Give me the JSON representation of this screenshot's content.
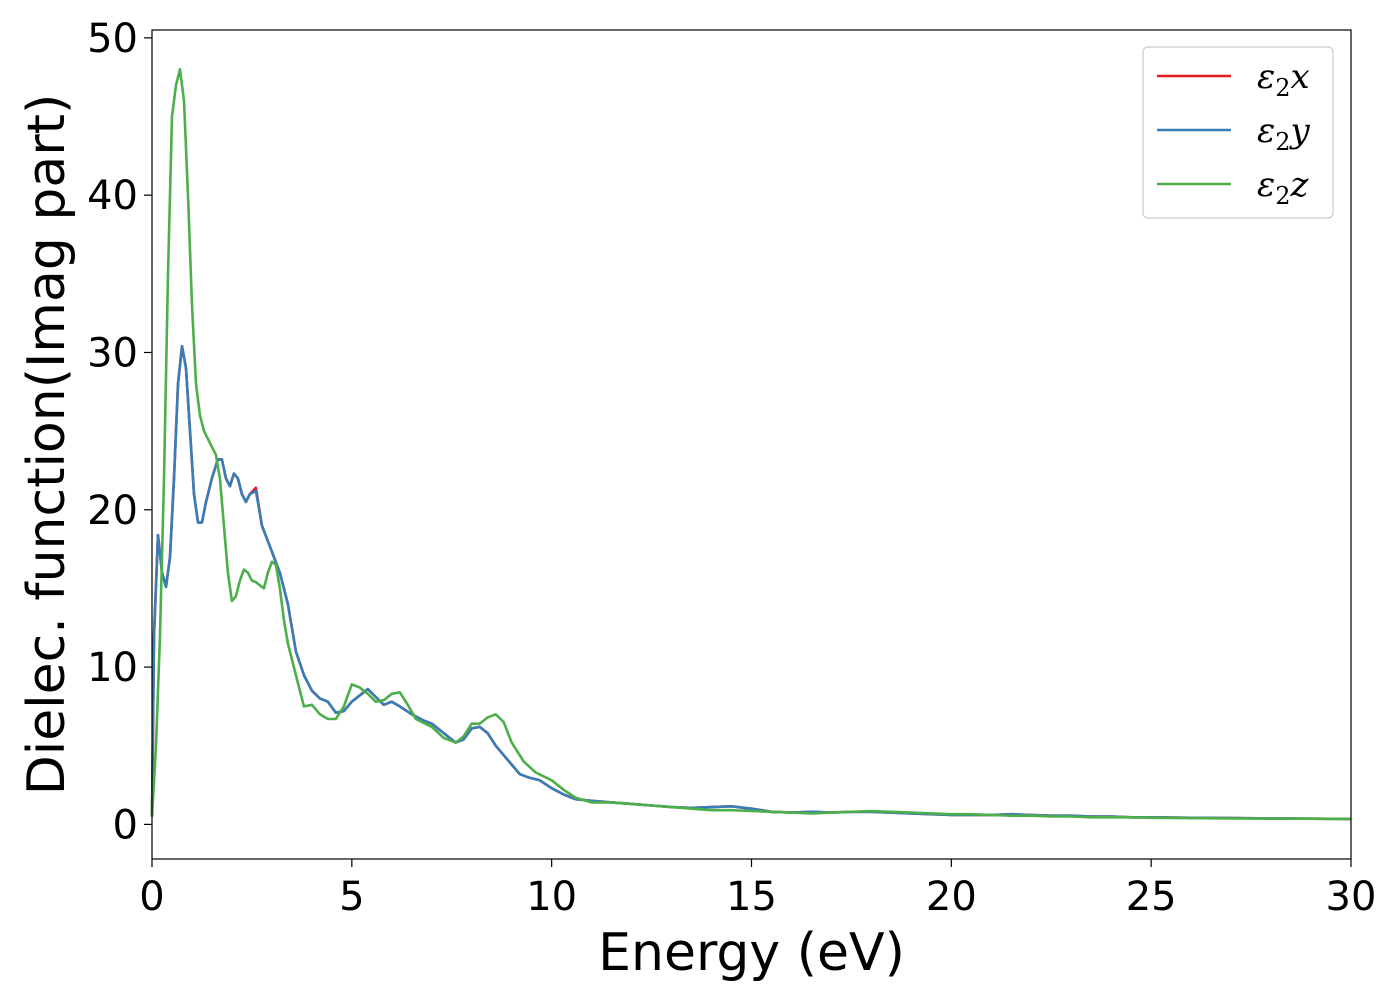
{
  "chart_data": {
    "type": "line",
    "title": "",
    "xlabel": "Energy (eV)",
    "ylabel": "Dielec. function(Imag part)",
    "xlim": [
      0,
      30
    ],
    "ylim": [
      -2.2,
      50.5
    ],
    "xticks": [
      0,
      5,
      10,
      15,
      20,
      25,
      30
    ],
    "yticks": [
      0,
      10,
      20,
      30,
      40,
      50
    ],
    "xtick_labels": [
      "0",
      "5",
      "10",
      "15",
      "20",
      "25",
      "30"
    ],
    "ytick_labels": [
      "0",
      "10",
      "20",
      "30",
      "40",
      "50"
    ],
    "grid": false,
    "legend_position": "top-right",
    "series": [
      {
        "name": "ε₂x",
        "legend_base": "ε",
        "legend_sub": "2",
        "legend_var": "x",
        "color": "#e41a1c",
        "x": [
          0,
          0.05,
          0.15,
          0.25,
          0.35,
          0.45,
          0.55,
          0.65,
          0.75,
          0.85,
          0.95,
          1.05,
          1.15,
          1.25,
          1.35,
          1.5,
          1.65,
          1.75,
          1.85,
          1.95,
          2.05,
          2.15,
          2.25,
          2.35,
          2.45,
          2.6,
          2.75,
          2.9,
          3.05,
          3.2,
          3.4,
          3.6,
          3.8,
          4.0,
          4.2,
          4.4,
          4.6,
          4.8,
          5.0,
          5.2,
          5.4,
          5.6,
          5.8,
          6.0,
          6.2,
          6.5,
          6.8,
          7.0,
          7.3,
          7.6,
          7.8,
          8.0,
          8.2,
          8.4,
          8.6,
          8.8,
          9.0,
          9.2,
          9.4,
          9.7,
          10.0,
          10.3,
          10.6,
          11.0,
          11.5,
          12.0,
          12.5,
          13.0,
          13.5,
          14.0,
          14.5,
          15.0,
          15.5,
          16.0,
          16.5,
          17.0,
          17.5,
          18.0,
          18.5,
          19.0,
          19.5,
          20.0,
          20.5,
          21.0,
          21.5,
          22.0,
          22.5,
          23.0,
          23.5,
          24.0,
          24.5,
          25.0,
          26.0,
          27.0,
          28.0,
          29.0,
          30.0
        ],
        "values": [
          0.5,
          12,
          18.4,
          16,
          15.1,
          17,
          22,
          28,
          30.4,
          29,
          25,
          21,
          19.2,
          19.2,
          20.5,
          22,
          23.2,
          23.2,
          22,
          21.5,
          22.3,
          22,
          21,
          20.5,
          21,
          21.4,
          19,
          18,
          17,
          16,
          14,
          11,
          9.5,
          8.5,
          8,
          7.8,
          7.1,
          7.2,
          7.8,
          8.2,
          8.6,
          8.1,
          7.6,
          7.8,
          7.5,
          7,
          6.6,
          6.4,
          5.8,
          5.2,
          5.4,
          6.1,
          6.2,
          5.8,
          5.0,
          4.4,
          3.8,
          3.2,
          3.0,
          2.8,
          2.3,
          1.9,
          1.6,
          1.5,
          1.4,
          1.3,
          1.2,
          1.1,
          1.05,
          1.1,
          1.15,
          1.0,
          0.8,
          0.75,
          0.8,
          0.75,
          0.8,
          0.8,
          0.75,
          0.7,
          0.65,
          0.6,
          0.6,
          0.6,
          0.65,
          0.6,
          0.55,
          0.55,
          0.5,
          0.5,
          0.45,
          0.45,
          0.42,
          0.4,
          0.38,
          0.36,
          0.35
        ]
      },
      {
        "name": "ε₂y",
        "legend_base": "ε",
        "legend_sub": "2",
        "legend_var": "y",
        "color": "#377eb8",
        "x": [
          0,
          0.05,
          0.15,
          0.25,
          0.35,
          0.45,
          0.55,
          0.65,
          0.75,
          0.85,
          0.95,
          1.05,
          1.15,
          1.25,
          1.35,
          1.5,
          1.65,
          1.75,
          1.85,
          1.95,
          2.05,
          2.15,
          2.25,
          2.35,
          2.45,
          2.6,
          2.75,
          2.9,
          3.05,
          3.2,
          3.4,
          3.6,
          3.8,
          4.0,
          4.2,
          4.4,
          4.6,
          4.8,
          5.0,
          5.2,
          5.4,
          5.6,
          5.8,
          6.0,
          6.2,
          6.5,
          6.8,
          7.0,
          7.3,
          7.6,
          7.8,
          8.0,
          8.2,
          8.4,
          8.6,
          8.8,
          9.0,
          9.2,
          9.4,
          9.7,
          10.0,
          10.3,
          10.6,
          11.0,
          11.5,
          12.0,
          12.5,
          13.0,
          13.5,
          14.0,
          14.5,
          15.0,
          15.5,
          16.0,
          16.5,
          17.0,
          17.5,
          18.0,
          18.5,
          19.0,
          19.5,
          20.0,
          20.5,
          21.0,
          21.5,
          22.0,
          22.5,
          23.0,
          23.5,
          24.0,
          24.5,
          25.0,
          26.0,
          27.0,
          28.0,
          29.0,
          30.0
        ],
        "values": [
          0.5,
          12,
          18.4,
          16,
          15.1,
          17,
          22,
          28,
          30.4,
          29,
          25,
          21,
          19.2,
          19.2,
          20.5,
          22,
          23.2,
          23.2,
          22,
          21.5,
          22.3,
          22,
          21,
          20.5,
          21,
          21.2,
          19,
          18,
          17,
          16,
          14,
          11,
          9.5,
          8.5,
          8,
          7.8,
          7.1,
          7.2,
          7.8,
          8.2,
          8.6,
          8.1,
          7.6,
          7.8,
          7.5,
          7,
          6.6,
          6.4,
          5.8,
          5.2,
          5.4,
          6.1,
          6.2,
          5.8,
          5.0,
          4.4,
          3.8,
          3.2,
          3.0,
          2.8,
          2.3,
          1.9,
          1.6,
          1.5,
          1.4,
          1.3,
          1.2,
          1.1,
          1.05,
          1.1,
          1.15,
          1.0,
          0.8,
          0.75,
          0.8,
          0.75,
          0.8,
          0.8,
          0.75,
          0.7,
          0.65,
          0.6,
          0.6,
          0.6,
          0.65,
          0.6,
          0.55,
          0.55,
          0.5,
          0.5,
          0.45,
          0.45,
          0.42,
          0.4,
          0.38,
          0.36,
          0.35
        ]
      },
      {
        "name": "ε₂z",
        "legend_base": "ε",
        "legend_sub": "2",
        "legend_var": "z",
        "color": "#4daf4a",
        "x": [
          0,
          0.1,
          0.2,
          0.3,
          0.4,
          0.5,
          0.6,
          0.7,
          0.8,
          0.9,
          1.0,
          1.1,
          1.2,
          1.3,
          1.4,
          1.5,
          1.6,
          1.7,
          1.8,
          1.9,
          2.0,
          2.1,
          2.2,
          2.3,
          2.4,
          2.5,
          2.6,
          2.7,
          2.8,
          2.9,
          3.0,
          3.1,
          3.2,
          3.3,
          3.4,
          3.6,
          3.8,
          4.0,
          4.2,
          4.4,
          4.6,
          4.8,
          5.0,
          5.2,
          5.4,
          5.6,
          5.8,
          6.0,
          6.2,
          6.4,
          6.6,
          7.0,
          7.3,
          7.6,
          7.8,
          8.0,
          8.2,
          8.4,
          8.6,
          8.8,
          9.0,
          9.3,
          9.6,
          10.0,
          10.3,
          10.6,
          11.0,
          11.5,
          12.0,
          12.5,
          13.0,
          13.5,
          14.0,
          14.5,
          15.0,
          15.5,
          16.0,
          16.5,
          17.0,
          17.5,
          18.0,
          18.5,
          19.0,
          19.5,
          20.0,
          20.5,
          21.0,
          21.5,
          22.0,
          22.5,
          23.0,
          23.5,
          24.0,
          24.5,
          25.0,
          26.0,
          27.0,
          28.0,
          29.0,
          30.0
        ],
        "values": [
          0.5,
          5,
          12,
          22,
          35,
          45,
          47,
          48,
          46,
          40,
          33,
          28,
          26,
          25,
          24.5,
          24,
          23.5,
          22,
          19,
          16,
          14.2,
          14.5,
          15.5,
          16.2,
          16,
          15.5,
          15.4,
          15.2,
          15,
          16,
          16.7,
          16.5,
          15,
          13,
          11.5,
          9.5,
          7.5,
          7.6,
          7.0,
          6.7,
          6.7,
          7.5,
          8.9,
          8.7,
          8.3,
          7.8,
          7.9,
          8.3,
          8.4,
          7.6,
          6.7,
          6.2,
          5.5,
          5.2,
          5.6,
          6.4,
          6.4,
          6.8,
          7.0,
          6.5,
          5.2,
          4.0,
          3.3,
          2.8,
          2.2,
          1.7,
          1.4,
          1.4,
          1.3,
          1.2,
          1.1,
          1.0,
          0.9,
          0.9,
          0.85,
          0.8,
          0.75,
          0.7,
          0.75,
          0.8,
          0.85,
          0.8,
          0.75,
          0.7,
          0.65,
          0.65,
          0.6,
          0.55,
          0.55,
          0.5,
          0.5,
          0.45,
          0.45,
          0.45,
          0.42,
          0.4,
          0.38,
          0.37,
          0.36,
          0.35
        ]
      }
    ]
  }
}
